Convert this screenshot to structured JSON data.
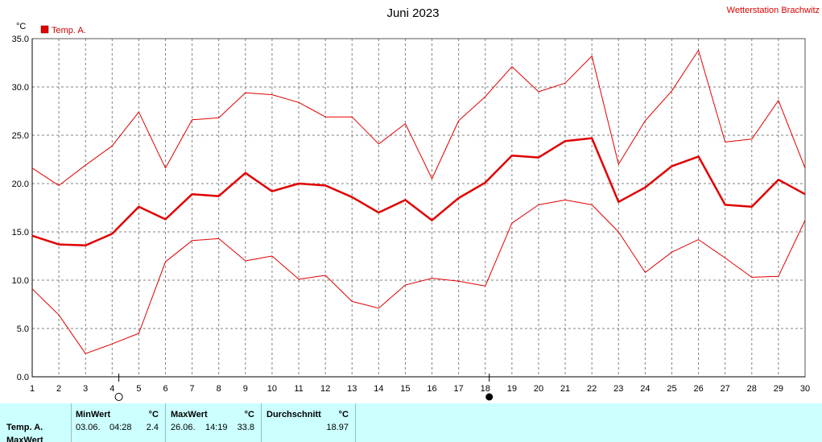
{
  "header": {
    "title": "Juni 2023",
    "station": "Wetterstation Brachwitz",
    "unit": "°C"
  },
  "colors": {
    "series": "#e00000",
    "grid": "#808080",
    "stats_bg": "#ccffff"
  },
  "chart_data": {
    "type": "line",
    "ylim": [
      0,
      35
    ],
    "xlim": [
      1,
      30
    ],
    "grid": true,
    "legend_position": "top-left",
    "yticks": [
      "0.0",
      "5.0",
      "10.0",
      "15.0",
      "20.0",
      "25.0",
      "30.0",
      "35.0"
    ],
    "x": [
      1,
      2,
      3,
      4,
      5,
      6,
      7,
      8,
      9,
      10,
      11,
      12,
      13,
      14,
      15,
      16,
      17,
      18,
      19,
      20,
      21,
      22,
      23,
      24,
      25,
      26,
      27,
      28,
      29,
      30
    ],
    "series": [
      {
        "name": "Temp. A.",
        "role": "mean",
        "values": [
          14.6,
          13.7,
          13.6,
          14.8,
          17.6,
          16.3,
          18.9,
          18.7,
          21.1,
          19.2,
          20.0,
          19.8,
          18.6,
          17.0,
          18.3,
          16.2,
          18.5,
          20.1,
          22.9,
          22.7,
          24.4,
          24.7,
          18.1,
          19.6,
          21.8,
          22.8,
          17.8,
          17.6,
          20.4,
          18.9
        ]
      },
      {
        "role": "max",
        "values": [
          21.6,
          19.8,
          21.9,
          23.9,
          27.4,
          21.6,
          26.6,
          26.8,
          29.4,
          29.2,
          28.4,
          26.9,
          26.9,
          24.1,
          26.2,
          20.5,
          26.5,
          29.0,
          32.1,
          29.5,
          30.4,
          33.2,
          22.0,
          26.5,
          29.6,
          33.8,
          24.3,
          24.6,
          28.6,
          21.6
        ]
      },
      {
        "role": "min",
        "values": [
          9.1,
          6.4,
          2.4,
          3.4,
          4.5,
          11.9,
          14.1,
          14.3,
          12.0,
          12.5,
          10.1,
          10.5,
          7.8,
          7.1,
          9.5,
          10.2,
          9.9,
          9.4,
          15.9,
          17.8,
          18.3,
          17.8,
          15.0,
          10.8,
          12.9,
          14.2,
          12.3,
          10.3,
          10.4,
          16.2
        ]
      }
    ],
    "moon_phases": [
      {
        "day": 4.25,
        "phase": "full-moon"
      },
      {
        "day": 18.15,
        "phase": "new-moon"
      }
    ]
  },
  "stats": {
    "row_label": "Temp. A.",
    "row_label_2": "MaxWert",
    "min_header": "MinWert",
    "min_date": "03.06.",
    "min_time": "04:28",
    "min_value": "2.4",
    "max_header": "MaxWert",
    "max_date": "26.06.",
    "max_time": "14:19",
    "max_value": "33.8",
    "avg_header": "Durchschnitt",
    "avg_value": "18.97",
    "unit": "°C"
  }
}
